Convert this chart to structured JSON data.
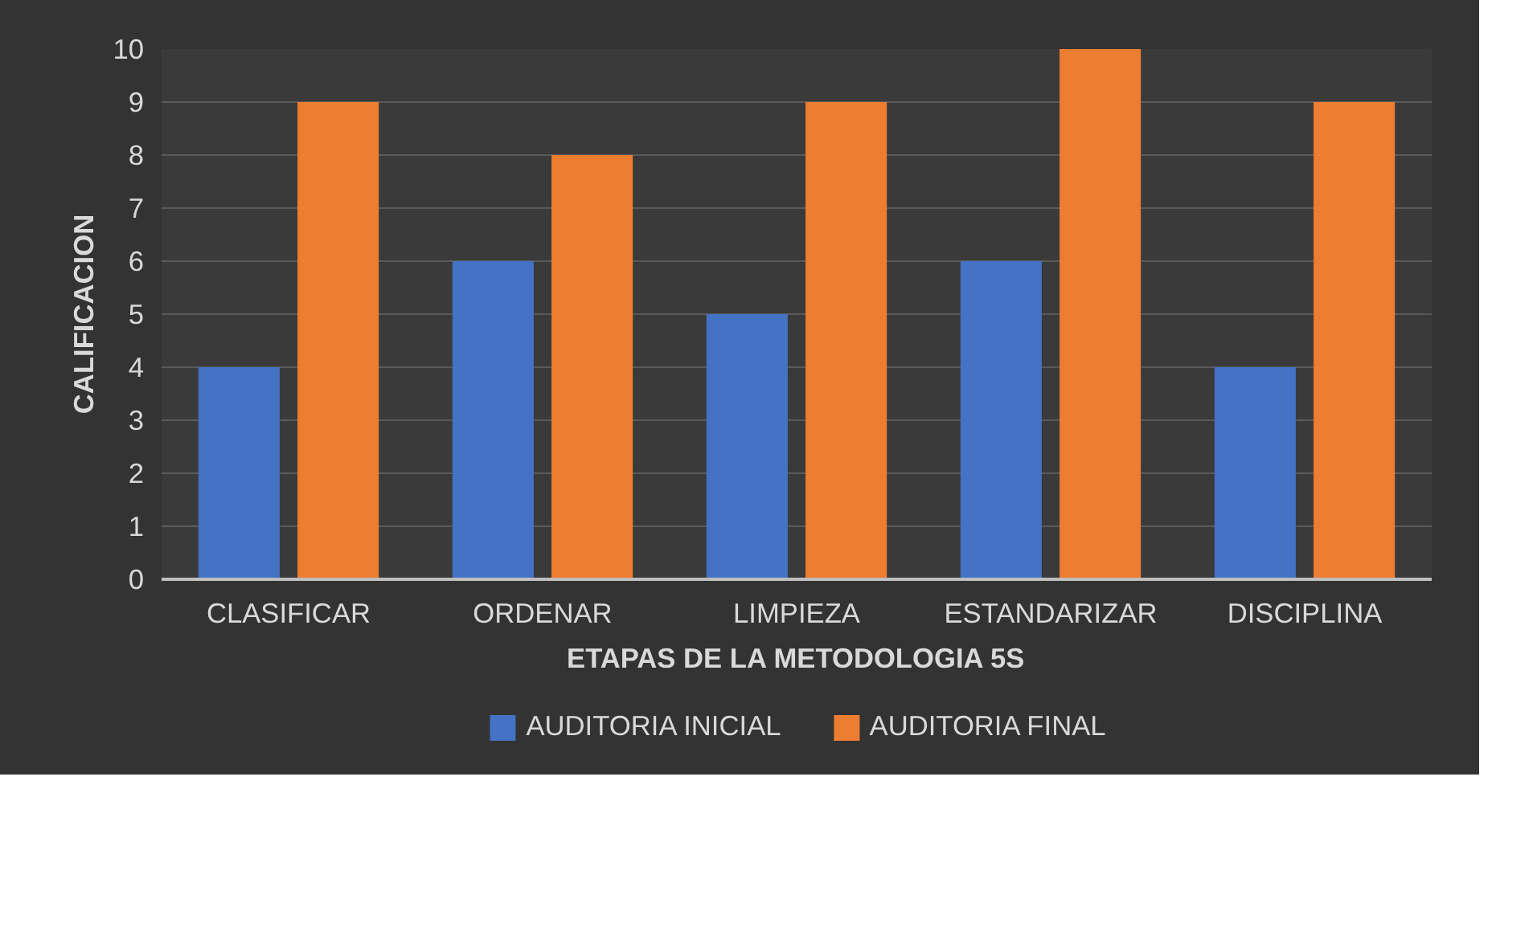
{
  "chart_data": {
    "type": "bar",
    "xlabel": "ETAPAS DE LA METODOLOGIA 5S",
    "ylabel": "CALIFICACION",
    "categories": [
      "CLASIFICAR",
      "ORDENAR",
      "LIMPIEZA",
      "ESTANDARIZAR",
      "DISCIPLINA"
    ],
    "series": [
      {
        "name": "AUDITORIA INICIAL",
        "color": "#4472c4",
        "values": [
          4,
          6,
          5,
          6,
          4
        ]
      },
      {
        "name": "AUDITORIA FINAL",
        "color": "#ed7d31",
        "values": [
          9,
          8,
          9,
          10,
          9
        ]
      }
    ],
    "ylim": [
      0,
      10
    ],
    "yticks": [
      0,
      1,
      2,
      3,
      4,
      5,
      6,
      7,
      8,
      9,
      10
    ],
    "grid": "y",
    "legend": "bottom"
  }
}
